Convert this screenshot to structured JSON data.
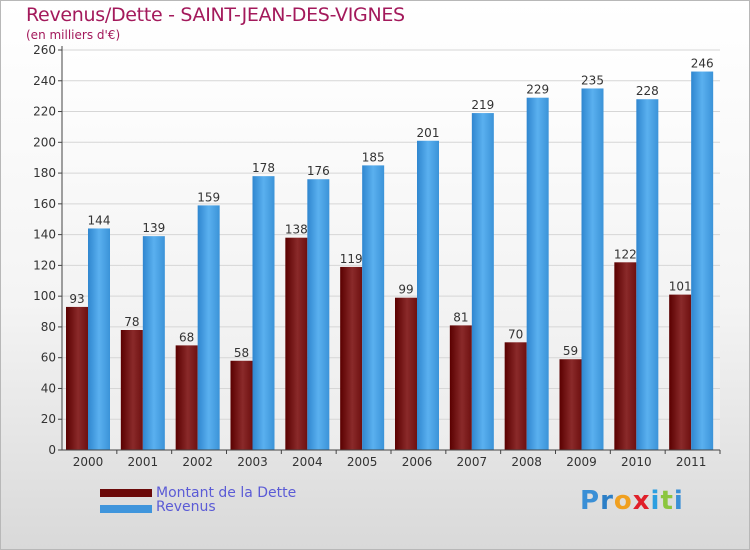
{
  "header": {
    "title": "Revenus/Dette - SAINT-JEAN-DES-VIGNES",
    "subtitle": "(en milliers d'€)"
  },
  "legend": {
    "items": [
      {
        "label": "Montant de la Dette",
        "color": "#6b0a0a"
      },
      {
        "label": "Revenus",
        "color": "#3f95dc"
      }
    ]
  },
  "logo": {
    "letters": [
      "P",
      "r",
      "o",
      "x",
      "i",
      "t",
      "i"
    ],
    "colors": [
      "#3a8fd6",
      "#2c7fc7",
      "#f0a020",
      "#e0202a",
      "#2c9fe0",
      "#8cc63f",
      "#3a8fd6"
    ]
  },
  "chart_data": {
    "type": "bar",
    "categories": [
      "2000",
      "2001",
      "2002",
      "2003",
      "2004",
      "2005",
      "2006",
      "2007",
      "2008",
      "2009",
      "2010",
      "2011"
    ],
    "series": [
      {
        "name": "Montant de la Dette",
        "values": [
          93,
          78,
          68,
          58,
          138,
          119,
          99,
          81,
          70,
          59,
          122,
          101
        ],
        "color": "#7a1515"
      },
      {
        "name": "Revenus",
        "values": [
          144,
          139,
          159,
          178,
          176,
          185,
          201,
          219,
          229,
          235,
          228,
          246
        ],
        "color": "#4aa3e6"
      }
    ],
    "y_ticks": [
      "0",
      "20",
      "40",
      "60",
      "80",
      "100",
      "120",
      "140",
      "160",
      "180",
      "200",
      "220",
      "240",
      "260"
    ],
    "ylim": [
      0,
      260
    ],
    "grid": true,
    "legend_position": "bottom-left"
  }
}
